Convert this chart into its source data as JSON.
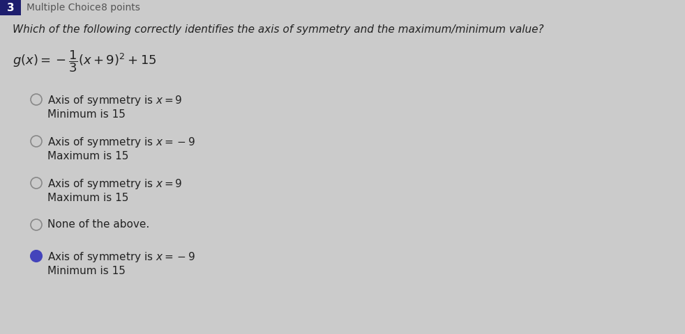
{
  "background_color": "#cbcbcb",
  "question_number": "3",
  "question_type": "Multiple Choice",
  "points": "8 points",
  "question_text": "Which of the following correctly identifies the axis of symmetry and the maximum/minimum value?",
  "choices": [
    {
      "line1": "Axis of symmetry is $x = 9$",
      "line2": "Minimum is 15",
      "selected": false
    },
    {
      "line1": "Axis of symmetry is $x = -9$",
      "line2": "Maximum is 15",
      "selected": false
    },
    {
      "line1": "Axis of symmetry is $x = 9$",
      "line2": "Maximum is 15",
      "selected": false
    },
    {
      "line1": "None of the above.",
      "line2": null,
      "selected": false
    },
    {
      "line1": "Axis of symmetry is $x = -9$",
      "line2": "Minimum is 15",
      "selected": true
    }
  ],
  "num_box_color": "#1e1e6e",
  "num_text_color": "#ffffff",
  "header_text_color": "#555555",
  "body_bg": "#cbcbcb",
  "text_color": "#222222",
  "circle_edge_color": "#888888",
  "circle_fill_color": "#cbcbcb",
  "selected_circle_color": "#4444bb",
  "header_fontsize": 10,
  "question_fontsize": 11,
  "formula_fontsize": 13,
  "choice_fontsize": 11
}
